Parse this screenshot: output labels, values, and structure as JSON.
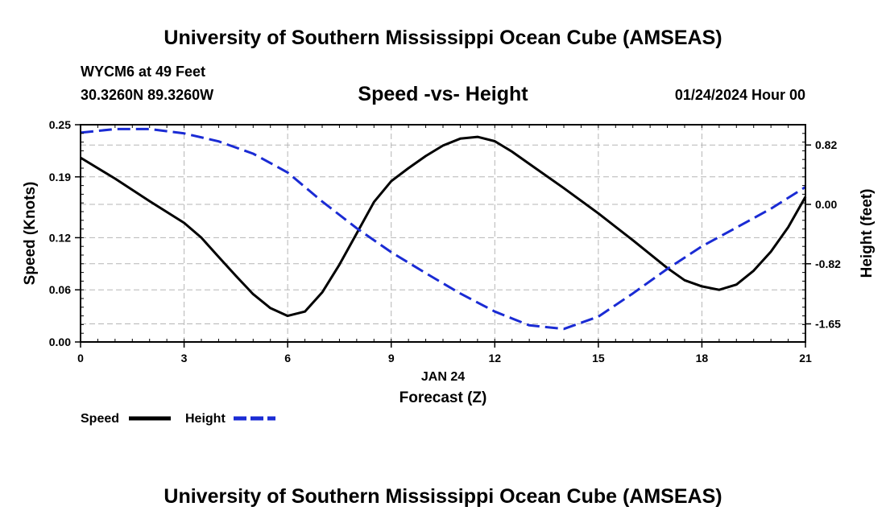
{
  "title": "University of Southern Mississippi Ocean Cube (AMSEAS)",
  "footer_title": "University of Southern Mississippi Ocean Cube (AMSEAS)",
  "station": "WYCM6 at 49 Feet",
  "location": "30.3260N  89.3260W",
  "datetime": "01/24/2024 Hour 00",
  "chart_data": {
    "type": "line",
    "title": "Speed -vs- Height",
    "xlabel": "Forecast (Z)",
    "xdate": "JAN 24",
    "ylabel": "Speed (Knots)",
    "y2label": "Height (feet)",
    "xlim": [
      0,
      21
    ],
    "ylim": [
      0,
      0.25
    ],
    "y2lim": [
      -1.9,
      1.1
    ],
    "grid": true,
    "x_ticks": [
      "0",
      "3",
      "6",
      "9",
      "12",
      "15",
      "18",
      "21"
    ],
    "y_ticks": [
      "0.00",
      "0.06",
      "0.12",
      "0.19",
      "0.25"
    ],
    "y2_ticks": [
      "-1.65",
      "-0.82",
      "0.00",
      "0.82"
    ],
    "legend_position": "bottom-left",
    "series": [
      {
        "name": "Speed",
        "axis": "left",
        "color": "#000000",
        "style": "solid",
        "x": [
          0,
          1,
          2,
          3,
          3.5,
          4,
          4.5,
          5,
          5.5,
          6,
          6.5,
          7,
          7.5,
          8,
          8.5,
          9,
          9.5,
          10,
          10.5,
          11,
          11.5,
          12,
          12.5,
          13,
          14,
          15,
          16,
          17,
          17.5,
          18,
          18.5,
          19,
          19.5,
          20,
          20.5,
          21
        ],
        "values": [
          0.212,
          0.188,
          0.162,
          0.137,
          0.12,
          0.098,
          0.076,
          0.055,
          0.039,
          0.03,
          0.035,
          0.057,
          0.089,
          0.125,
          0.161,
          0.185,
          0.2,
          0.214,
          0.226,
          0.234,
          0.236,
          0.231,
          0.219,
          0.205,
          0.177,
          0.148,
          0.117,
          0.085,
          0.071,
          0.064,
          0.06,
          0.066,
          0.082,
          0.104,
          0.132,
          0.167
        ]
      },
      {
        "name": "Height",
        "axis": "right",
        "color": "#1a2bd4",
        "style": "dashed",
        "x": [
          0,
          1,
          2,
          3,
          4,
          5,
          6,
          7,
          8,
          9,
          10,
          11,
          12,
          13,
          14,
          15,
          16,
          17,
          18,
          19,
          20,
          21
        ],
        "values": [
          0.99,
          1.04,
          1.04,
          0.98,
          0.87,
          0.7,
          0.44,
          0.04,
          -0.33,
          -0.66,
          -0.95,
          -1.23,
          -1.48,
          -1.67,
          -1.72,
          -1.55,
          -1.23,
          -0.89,
          -0.58,
          -0.32,
          -0.06,
          0.24
        ]
      }
    ]
  }
}
